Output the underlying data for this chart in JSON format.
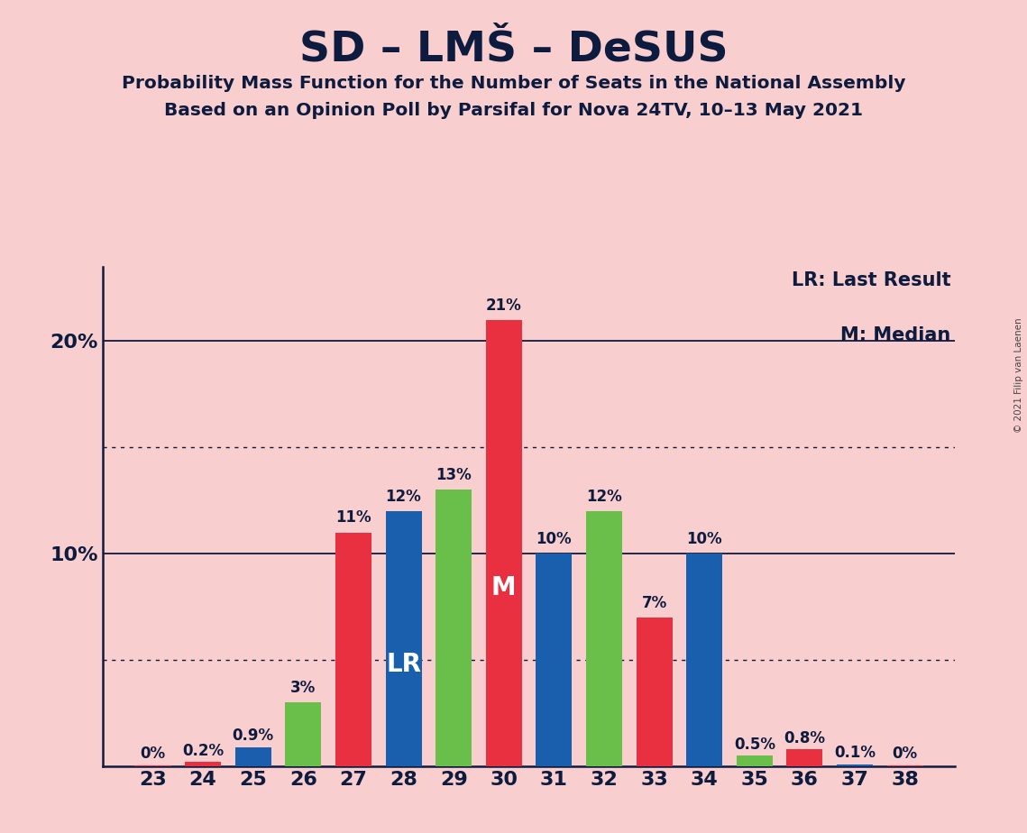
{
  "title": "SD – LMŠ – DeSUS",
  "subtitle1": "Probability Mass Function for the Number of Seats in the National Assembly",
  "subtitle2": "Based on an Opinion Poll by Parsifal for Nova 24TV, 10–13 May 2021",
  "copyright": "© 2021 Filip van Laenen",
  "seats": [
    23,
    24,
    25,
    26,
    27,
    28,
    29,
    30,
    31,
    32,
    33,
    34,
    35,
    36,
    37,
    38
  ],
  "values": [
    0.05,
    0.2,
    0.9,
    3.0,
    11.0,
    12.0,
    13.0,
    21.0,
    10.0,
    12.0,
    7.0,
    10.0,
    0.5,
    0.8,
    0.1,
    0.05
  ],
  "labels": [
    "0%",
    "0.2%",
    "0.9%",
    "3%",
    "11%",
    "12%",
    "13%",
    "21%",
    "10%",
    "12%",
    "7%",
    "10%",
    "0.5%",
    "0.8%",
    "0.1%",
    "0%"
  ],
  "colors": [
    "#e83040",
    "#e83040",
    "#1a5fad",
    "#6abf4b",
    "#e83040",
    "#1a5fad",
    "#6abf4b",
    "#e83040",
    "#1a5fad",
    "#6abf4b",
    "#e83040",
    "#1a5fad",
    "#6abf4b",
    "#e83040",
    "#1a5fad",
    "#e83040"
  ],
  "lr_seat": 28,
  "median_seat": 30,
  "background_color": "#f9cece",
  "ylim": [
    0,
    23.5
  ],
  "solid_lines": [
    10.0,
    20.0
  ],
  "dotted_lines": [
    15.0,
    5.0
  ],
  "lr_label": "LR: Last Result",
  "median_label": "M: Median",
  "label_fontsize": 12,
  "tick_fontsize": 16,
  "bar_width": 0.72
}
